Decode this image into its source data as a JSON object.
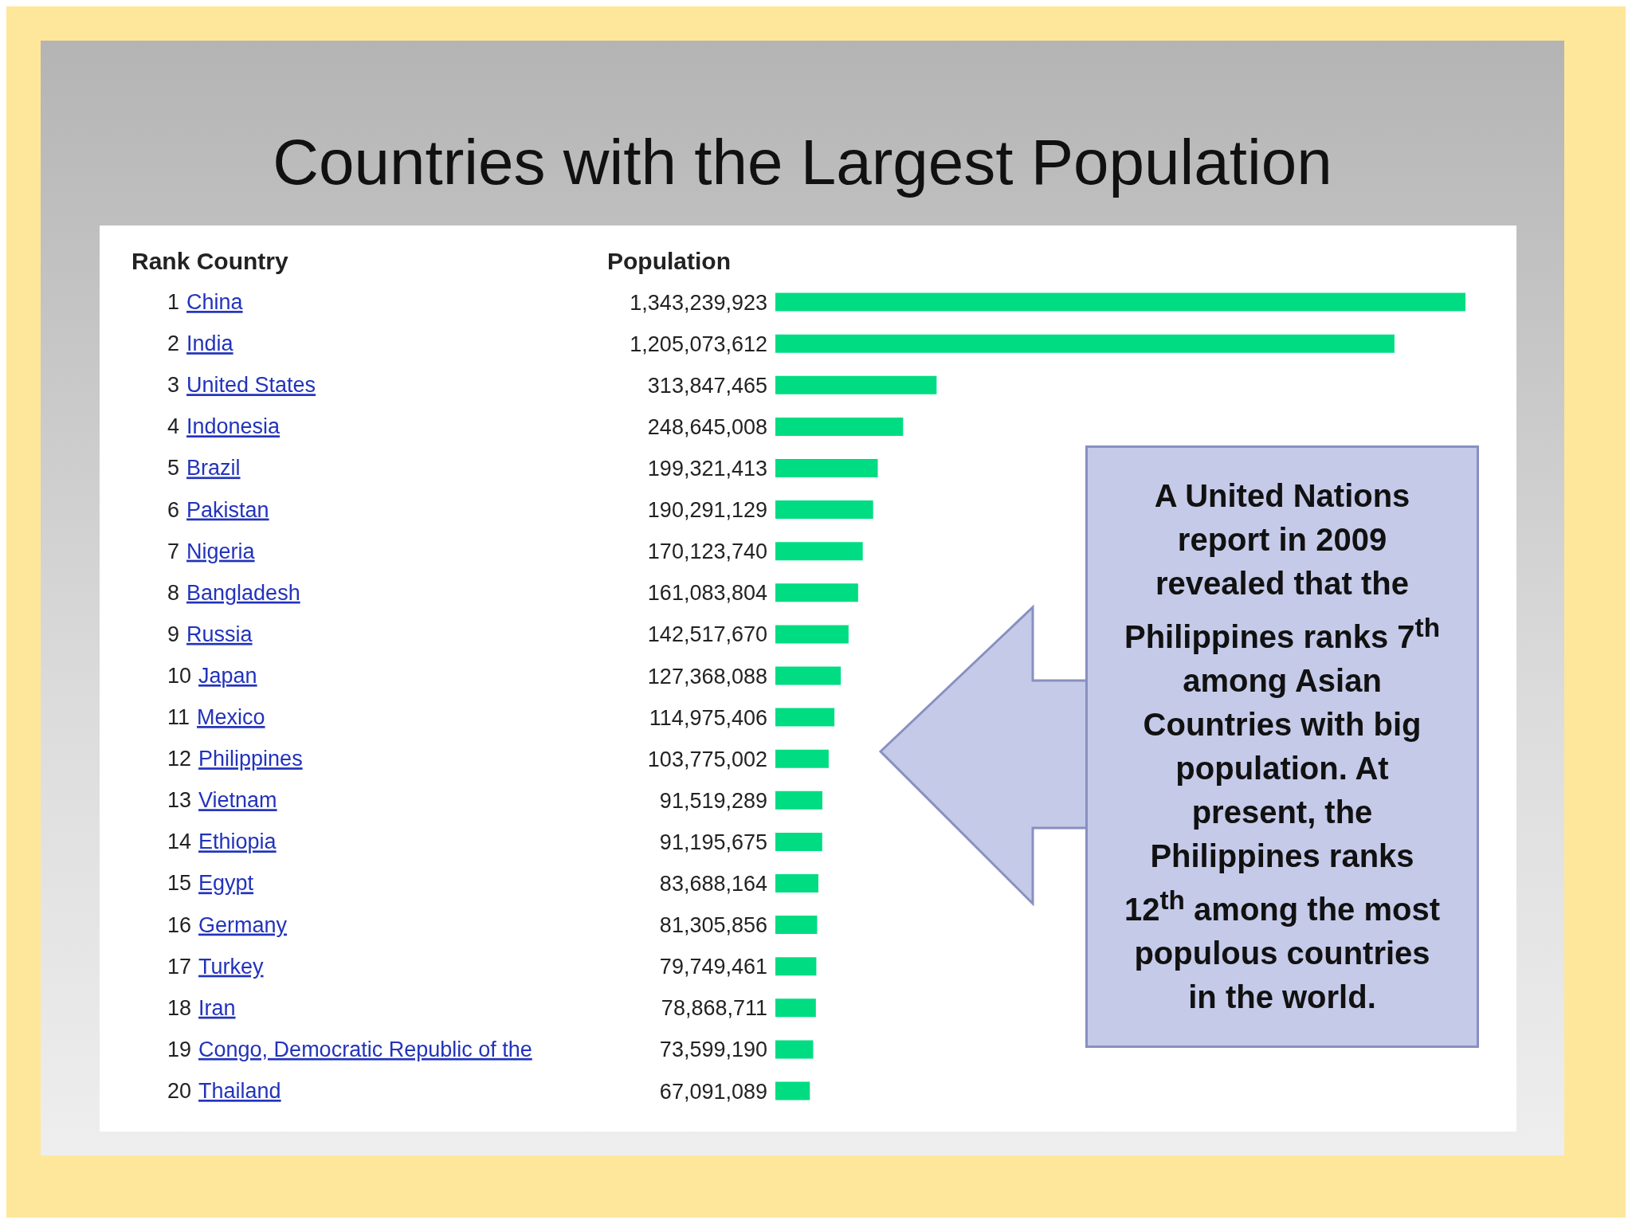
{
  "chart_data": {
    "type": "bar",
    "orientation": "horizontal",
    "title": "Countries with the Largest Population",
    "categories": [
      "1 China",
      "2 India",
      "3 United States",
      "4 Indonesia",
      "5 Brazil",
      "6 Pakistan",
      "7 Nigeria",
      "8 Bangladesh",
      "9 Russia",
      "10 Japan",
      "11 Mexico",
      "12 Philippines",
      "13 Vietnam",
      "14 Ethiopia",
      "15 Egypt",
      "16 Germany",
      "17 Turkey",
      "18 Iran",
      "19 Congo, Democratic Republic of the",
      "20 Thailand"
    ],
    "values": [
      1343239923,
      1205073612,
      313847465,
      248645008,
      199321413,
      190291129,
      170123740,
      161083804,
      142517670,
      127368088,
      114975406,
      103775002,
      91519289,
      91195675,
      83688164,
      81305856,
      79749461,
      78868711,
      73599190,
      67091089
    ],
    "value_labels": [
      "1,343,239,923",
      "1,205,073,612",
      "313,847,465",
      "248,645,008",
      "199,321,413",
      "190,291,129",
      "170,123,740",
      "161,083,804",
      "142,517,670",
      "127,368,088",
      "114,975,406",
      "103,775,002",
      "91,519,289",
      "91,195,675",
      "83,688,164",
      "81,305,856",
      "79,749,461",
      "78,868,711",
      "73,599,190",
      "67,091,089"
    ],
    "color": "#00dc82",
    "annotations": [
      "Rank Country",
      "Population",
      "A United Nations report in 2009 revealed that the Philippines ranks 7$^{th}$ among Asian Countries with  big population. At present, the Philippines ranks 12$^{th}$ among the most populous countries in the world."
    ],
    "data_labels": false
  }
}
